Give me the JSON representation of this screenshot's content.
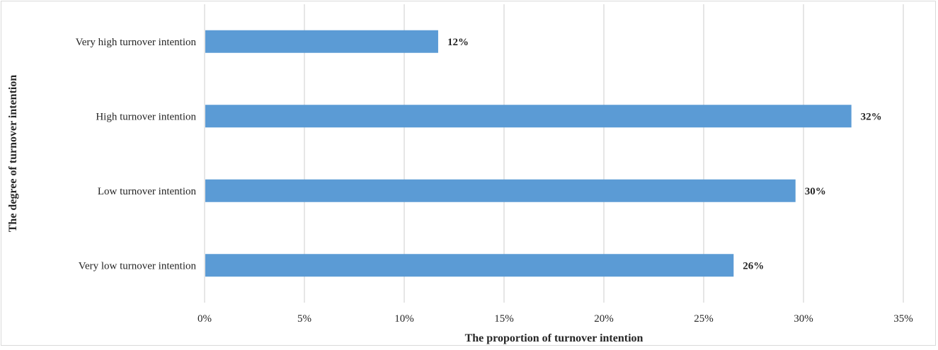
{
  "chart_data": {
    "type": "bar",
    "orientation": "horizontal",
    "title": "",
    "xlabel": "The proportion of turnover intention",
    "ylabel": "The degree of turnover intention",
    "categories": [
      "Very high turnover intention",
      "High turnover intention",
      "Low turnover intention",
      "Very low turnover intention"
    ],
    "values": [
      11.7,
      32.4,
      29.6,
      26.5
    ],
    "data_labels": [
      "12%",
      "32%",
      "30%",
      "26%"
    ],
    "xlim": [
      0,
      35
    ],
    "x_ticks": [
      0,
      5,
      10,
      15,
      20,
      25,
      30,
      35
    ],
    "x_tick_labels": [
      "0%",
      "5%",
      "10%",
      "15%",
      "20%",
      "25%",
      "30%",
      "35%"
    ],
    "grid": "vertical",
    "legend": "none",
    "bar_color": "#5b9bd5",
    "grid_color": "#d9d9d9"
  }
}
